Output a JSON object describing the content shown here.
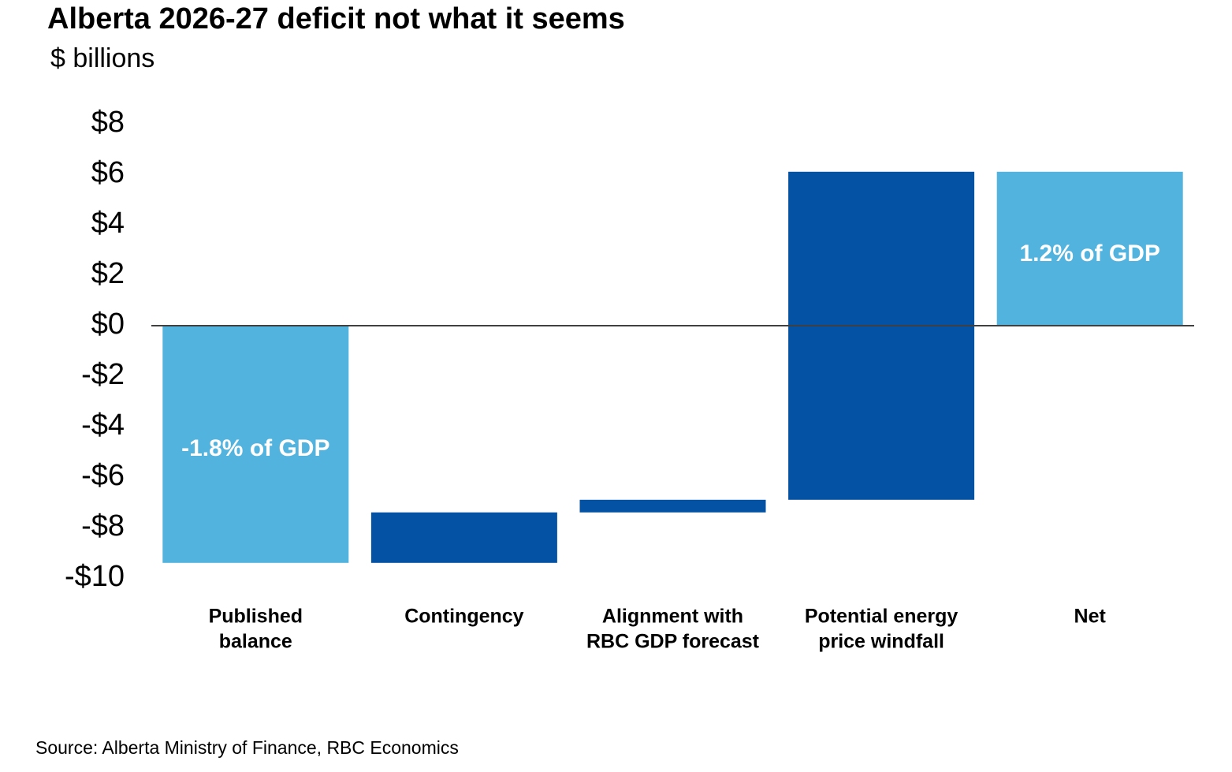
{
  "chart_data": {
    "type": "waterfall",
    "title": "Alberta 2026-27 deficit not what it seems",
    "subtitle": "$ billions",
    "source": "Source: Alberta Ministry of Finance, RBC Economics",
    "categories": [
      [
        "Published",
        "balance"
      ],
      [
        "Contingency"
      ],
      [
        "Alignment with",
        "RBC GDP forecast"
      ],
      [
        "Potential energy",
        "price windfall"
      ],
      [
        "Net"
      ]
    ],
    "values": [
      -9.4,
      2.0,
      0.5,
      13.0,
      6.1
    ],
    "measure": [
      "absolute",
      "relative",
      "relative",
      "relative",
      "total"
    ],
    "colors": [
      "#52b3de",
      "#0452a3",
      "#0452a3",
      "#0452a3",
      "#52b3de"
    ],
    "annotations": [
      {
        "text": "-1.8% of GDP",
        "x": 0
      },
      {
        "text": "1.2% of GDP",
        "x": 4
      }
    ],
    "ylim": [
      -10,
      8
    ],
    "yticks": [
      {
        "value": 8,
        "label": "$8"
      },
      {
        "value": 6,
        "label": "$6"
      },
      {
        "value": 4,
        "label": "$4"
      },
      {
        "value": 2,
        "label": "$2"
      },
      {
        "value": 0,
        "label": "$0"
      },
      {
        "value": -2,
        "label": "-$2"
      },
      {
        "value": -4,
        "label": "-$4"
      },
      {
        "value": -6,
        "label": "-$6"
      },
      {
        "value": -8,
        "label": "-$8"
      },
      {
        "value": -10,
        "label": "-$10"
      }
    ],
    "grid": false
  }
}
